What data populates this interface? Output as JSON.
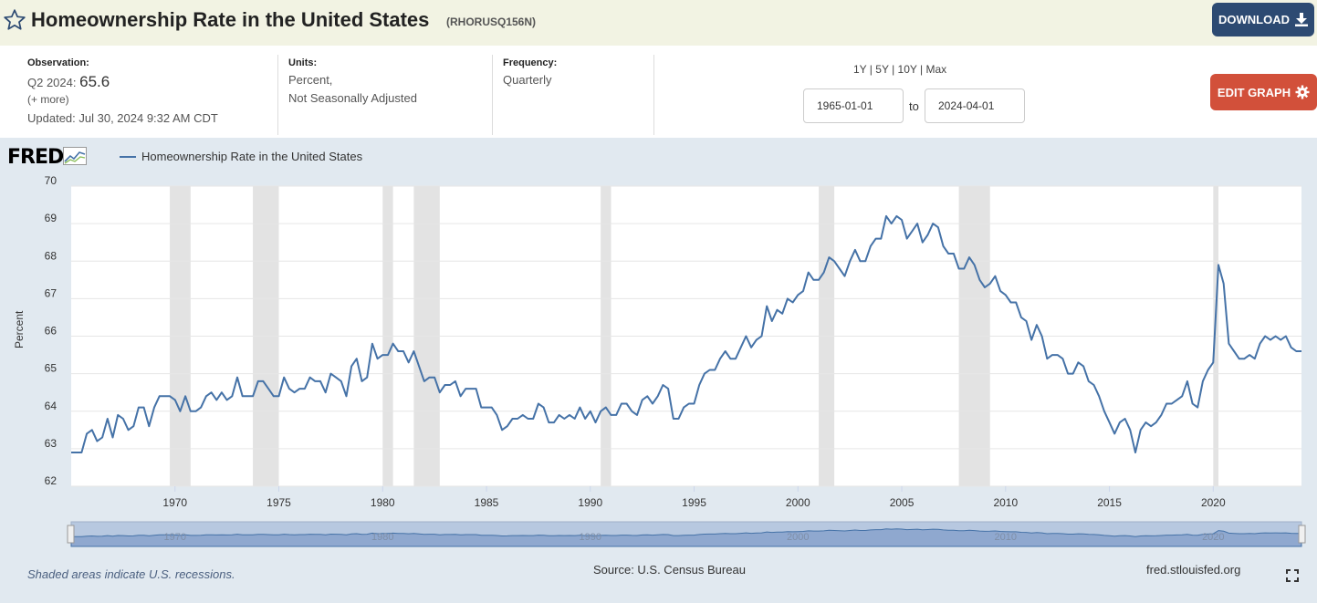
{
  "header": {
    "title": "Homeownership Rate in the United States",
    "series_id": "(RHORUSQ156N)",
    "download_label": "DOWNLOAD"
  },
  "meta": {
    "observation_label": "Observation:",
    "observation_period": "Q2 2024:",
    "observation_value": "65.6",
    "more": "(+ more)",
    "updated": "Updated: Jul 30, 2024 9:32 AM CDT",
    "units_label": "Units:",
    "units_line1": "Percent,",
    "units_line2": "Not Seasonally Adjusted",
    "frequency_label": "Frequency:",
    "frequency_value": "Quarterly"
  },
  "controls": {
    "ranges": [
      "1Y",
      "5Y",
      "10Y",
      "Max"
    ],
    "start_date": "1965-01-01",
    "to_label": "to",
    "end_date": "2024-04-01",
    "edit_label": "EDIT GRAPH"
  },
  "graph": {
    "logo_text": "FRED",
    "footer_note": "Shaded areas indicate U.S. recessions.",
    "source": "Source: U.S. Census Bureau",
    "site": "fred.stlouisfed.org"
  },
  "colors": {
    "series": "#4572a7",
    "recession": "#e3e3e3",
    "download": "#2d4a72",
    "edit": "#d2503a",
    "graph_bg": "#e1e9f0"
  },
  "chart_data": {
    "type": "line",
    "ylabel": "Percent",
    "ylim": [
      62,
      70
    ],
    "yticks": [
      62,
      63,
      64,
      65,
      66,
      67,
      68,
      69,
      70
    ],
    "xlim": [
      1965.0,
      2024.25
    ],
    "xticks": [
      1970,
      1975,
      1980,
      1985,
      1990,
      1995,
      2000,
      2005,
      2010,
      2015,
      2020
    ],
    "grid": true,
    "legend_position": "top-left",
    "series": [
      {
        "name": "Homeownership Rate in the United States",
        "points": [
          [
            1965.0,
            62.9
          ],
          [
            1965.5,
            62.9
          ],
          [
            1965.75,
            63.4
          ],
          [
            1966.0,
            63.5
          ],
          [
            1966.25,
            63.2
          ],
          [
            1966.5,
            63.3
          ],
          [
            1966.75,
            63.8
          ],
          [
            1967.0,
            63.3
          ],
          [
            1967.25,
            63.9
          ],
          [
            1967.5,
            63.8
          ],
          [
            1967.75,
            63.5
          ],
          [
            1968.0,
            63.6
          ],
          [
            1968.25,
            64.1
          ],
          [
            1968.5,
            64.1
          ],
          [
            1968.75,
            63.6
          ],
          [
            1969.0,
            64.1
          ],
          [
            1969.25,
            64.4
          ],
          [
            1969.5,
            64.4
          ],
          [
            1969.75,
            64.4
          ],
          [
            1970.0,
            64.3
          ],
          [
            1970.25,
            64.0
          ],
          [
            1970.5,
            64.4
          ],
          [
            1970.75,
            64.0
          ],
          [
            1971.0,
            64.0
          ],
          [
            1971.25,
            64.1
          ],
          [
            1971.5,
            64.4
          ],
          [
            1971.75,
            64.5
          ],
          [
            1972.0,
            64.3
          ],
          [
            1972.25,
            64.5
          ],
          [
            1972.5,
            64.3
          ],
          [
            1972.75,
            64.4
          ],
          [
            1973.0,
            64.9
          ],
          [
            1973.25,
            64.4
          ],
          [
            1973.5,
            64.4
          ],
          [
            1973.75,
            64.4
          ],
          [
            1974.0,
            64.8
          ],
          [
            1974.25,
            64.8
          ],
          [
            1974.5,
            64.6
          ],
          [
            1974.75,
            64.4
          ],
          [
            1975.0,
            64.4
          ],
          [
            1975.25,
            64.9
          ],
          [
            1975.5,
            64.6
          ],
          [
            1975.75,
            64.5
          ],
          [
            1976.0,
            64.6
          ],
          [
            1976.25,
            64.6
          ],
          [
            1976.5,
            64.9
          ],
          [
            1976.75,
            64.8
          ],
          [
            1977.0,
            64.8
          ],
          [
            1977.25,
            64.5
          ],
          [
            1977.5,
            65.0
          ],
          [
            1977.75,
            64.9
          ],
          [
            1978.0,
            64.8
          ],
          [
            1978.25,
            64.4
          ],
          [
            1978.5,
            65.2
          ],
          [
            1978.75,
            65.4
          ],
          [
            1979.0,
            64.8
          ],
          [
            1979.25,
            64.9
          ],
          [
            1979.5,
            65.8
          ],
          [
            1979.75,
            65.4
          ],
          [
            1980.0,
            65.5
          ],
          [
            1980.25,
            65.5
          ],
          [
            1980.5,
            65.8
          ],
          [
            1980.75,
            65.6
          ],
          [
            1981.0,
            65.6
          ],
          [
            1981.25,
            65.3
          ],
          [
            1981.5,
            65.6
          ],
          [
            1981.75,
            65.2
          ],
          [
            1982.0,
            64.8
          ],
          [
            1982.25,
            64.9
          ],
          [
            1982.5,
            64.9
          ],
          [
            1982.75,
            64.5
          ],
          [
            1983.0,
            64.7
          ],
          [
            1983.25,
            64.7
          ],
          [
            1983.5,
            64.8
          ],
          [
            1983.75,
            64.4
          ],
          [
            1984.0,
            64.6
          ],
          [
            1984.25,
            64.6
          ],
          [
            1984.5,
            64.6
          ],
          [
            1984.75,
            64.1
          ],
          [
            1985.0,
            64.1
          ],
          [
            1985.25,
            64.1
          ],
          [
            1985.5,
            63.9
          ],
          [
            1985.75,
            63.5
          ],
          [
            1986.0,
            63.6
          ],
          [
            1986.25,
            63.8
          ],
          [
            1986.5,
            63.8
          ],
          [
            1986.75,
            63.9
          ],
          [
            1987.0,
            63.8
          ],
          [
            1987.25,
            63.8
          ],
          [
            1987.5,
            64.2
          ],
          [
            1987.75,
            64.1
          ],
          [
            1988.0,
            63.7
          ],
          [
            1988.25,
            63.7
          ],
          [
            1988.5,
            63.9
          ],
          [
            1988.75,
            63.8
          ],
          [
            1989.0,
            63.9
          ],
          [
            1989.25,
            63.8
          ],
          [
            1989.5,
            64.1
          ],
          [
            1989.75,
            63.8
          ],
          [
            1990.0,
            64.0
          ],
          [
            1990.25,
            63.7
          ],
          [
            1990.5,
            64.0
          ],
          [
            1990.75,
            64.1
          ],
          [
            1991.0,
            63.9
          ],
          [
            1991.25,
            63.9
          ],
          [
            1991.5,
            64.2
          ],
          [
            1991.75,
            64.2
          ],
          [
            1992.0,
            64.0
          ],
          [
            1992.25,
            63.9
          ],
          [
            1992.5,
            64.3
          ],
          [
            1992.75,
            64.4
          ],
          [
            1993.0,
            64.2
          ],
          [
            1993.25,
            64.4
          ],
          [
            1993.5,
            64.7
          ],
          [
            1993.75,
            64.6
          ],
          [
            1994.0,
            63.8
          ],
          [
            1994.25,
            63.8
          ],
          [
            1994.5,
            64.1
          ],
          [
            1994.75,
            64.2
          ],
          [
            1995.0,
            64.2
          ],
          [
            1995.25,
            64.7
          ],
          [
            1995.5,
            65.0
          ],
          [
            1995.75,
            65.1
          ],
          [
            1996.0,
            65.1
          ],
          [
            1996.25,
            65.4
          ],
          [
            1996.5,
            65.6
          ],
          [
            1996.75,
            65.4
          ],
          [
            1997.0,
            65.4
          ],
          [
            1997.25,
            65.7
          ],
          [
            1997.5,
            66.0
          ],
          [
            1997.75,
            65.7
          ],
          [
            1998.0,
            65.9
          ],
          [
            1998.25,
            66.0
          ],
          [
            1998.5,
            66.8
          ],
          [
            1998.75,
            66.4
          ],
          [
            1999.0,
            66.7
          ],
          [
            1999.25,
            66.6
          ],
          [
            1999.5,
            67.0
          ],
          [
            1999.75,
            66.9
          ],
          [
            2000.0,
            67.1
          ],
          [
            2000.25,
            67.2
          ],
          [
            2000.5,
            67.7
          ],
          [
            2000.75,
            67.5
          ],
          [
            2001.0,
            67.5
          ],
          [
            2001.25,
            67.7
          ],
          [
            2001.5,
            68.1
          ],
          [
            2001.75,
            68.0
          ],
          [
            2002.0,
            67.8
          ],
          [
            2002.25,
            67.6
          ],
          [
            2002.5,
            68.0
          ],
          [
            2002.75,
            68.3
          ],
          [
            2003.0,
            68.0
          ],
          [
            2003.25,
            68.0
          ],
          [
            2003.5,
            68.4
          ],
          [
            2003.75,
            68.6
          ],
          [
            2004.0,
            68.6
          ],
          [
            2004.25,
            69.2
          ],
          [
            2004.5,
            69.0
          ],
          [
            2004.75,
            69.2
          ],
          [
            2005.0,
            69.1
          ],
          [
            2005.25,
            68.6
          ],
          [
            2005.5,
            68.8
          ],
          [
            2005.75,
            69.0
          ],
          [
            2006.0,
            68.5
          ],
          [
            2006.25,
            68.7
          ],
          [
            2006.5,
            69.0
          ],
          [
            2006.75,
            68.9
          ],
          [
            2007.0,
            68.4
          ],
          [
            2007.25,
            68.2
          ],
          [
            2007.5,
            68.2
          ],
          [
            2007.75,
            67.8
          ],
          [
            2008.0,
            67.8
          ],
          [
            2008.25,
            68.1
          ],
          [
            2008.5,
            67.9
          ],
          [
            2008.75,
            67.5
          ],
          [
            2009.0,
            67.3
          ],
          [
            2009.25,
            67.4
          ],
          [
            2009.5,
            67.6
          ],
          [
            2009.75,
            67.2
          ],
          [
            2010.0,
            67.1
          ],
          [
            2010.25,
            66.9
          ],
          [
            2010.5,
            66.9
          ],
          [
            2010.75,
            66.5
          ],
          [
            2011.0,
            66.4
          ],
          [
            2011.25,
            65.9
          ],
          [
            2011.5,
            66.3
          ],
          [
            2011.75,
            66.0
          ],
          [
            2012.0,
            65.4
          ],
          [
            2012.25,
            65.5
          ],
          [
            2012.5,
            65.5
          ],
          [
            2012.75,
            65.4
          ],
          [
            2013.0,
            65.0
          ],
          [
            2013.25,
            65.0
          ],
          [
            2013.5,
            65.3
          ],
          [
            2013.75,
            65.2
          ],
          [
            2014.0,
            64.8
          ],
          [
            2014.25,
            64.7
          ],
          [
            2014.5,
            64.4
          ],
          [
            2014.75,
            64.0
          ],
          [
            2015.0,
            63.7
          ],
          [
            2015.25,
            63.4
          ],
          [
            2015.5,
            63.7
          ],
          [
            2015.75,
            63.8
          ],
          [
            2016.0,
            63.5
          ],
          [
            2016.25,
            62.9
          ],
          [
            2016.5,
            63.5
          ],
          [
            2016.75,
            63.7
          ],
          [
            2017.0,
            63.6
          ],
          [
            2017.25,
            63.7
          ],
          [
            2017.5,
            63.9
          ],
          [
            2017.75,
            64.2
          ],
          [
            2018.0,
            64.2
          ],
          [
            2018.25,
            64.3
          ],
          [
            2018.5,
            64.4
          ],
          [
            2018.75,
            64.8
          ],
          [
            2019.0,
            64.2
          ],
          [
            2019.25,
            64.1
          ],
          [
            2019.5,
            64.8
          ],
          [
            2019.75,
            65.1
          ],
          [
            2020.0,
            65.3
          ],
          [
            2020.25,
            67.9
          ],
          [
            2020.5,
            67.4
          ],
          [
            2020.75,
            65.8
          ],
          [
            2021.0,
            65.6
          ],
          [
            2021.25,
            65.4
          ],
          [
            2021.5,
            65.4
          ],
          [
            2021.75,
            65.5
          ],
          [
            2022.0,
            65.4
          ],
          [
            2022.25,
            65.8
          ],
          [
            2022.5,
            66.0
          ],
          [
            2022.75,
            65.9
          ],
          [
            2023.0,
            66.0
          ],
          [
            2023.25,
            65.9
          ],
          [
            2023.5,
            66.0
          ],
          [
            2023.75,
            65.7
          ],
          [
            2024.0,
            65.6
          ],
          [
            2024.25,
            65.6
          ]
        ]
      }
    ],
    "recessions": [
      [
        1969.75,
        1970.75
      ],
      [
        1973.75,
        1975.0
      ],
      [
        1980.0,
        1980.5
      ],
      [
        1981.5,
        1982.75
      ],
      [
        1990.5,
        1991.0
      ],
      [
        2001.0,
        2001.75
      ],
      [
        2007.75,
        2009.25
      ],
      [
        2020.0,
        2020.25
      ]
    ]
  }
}
